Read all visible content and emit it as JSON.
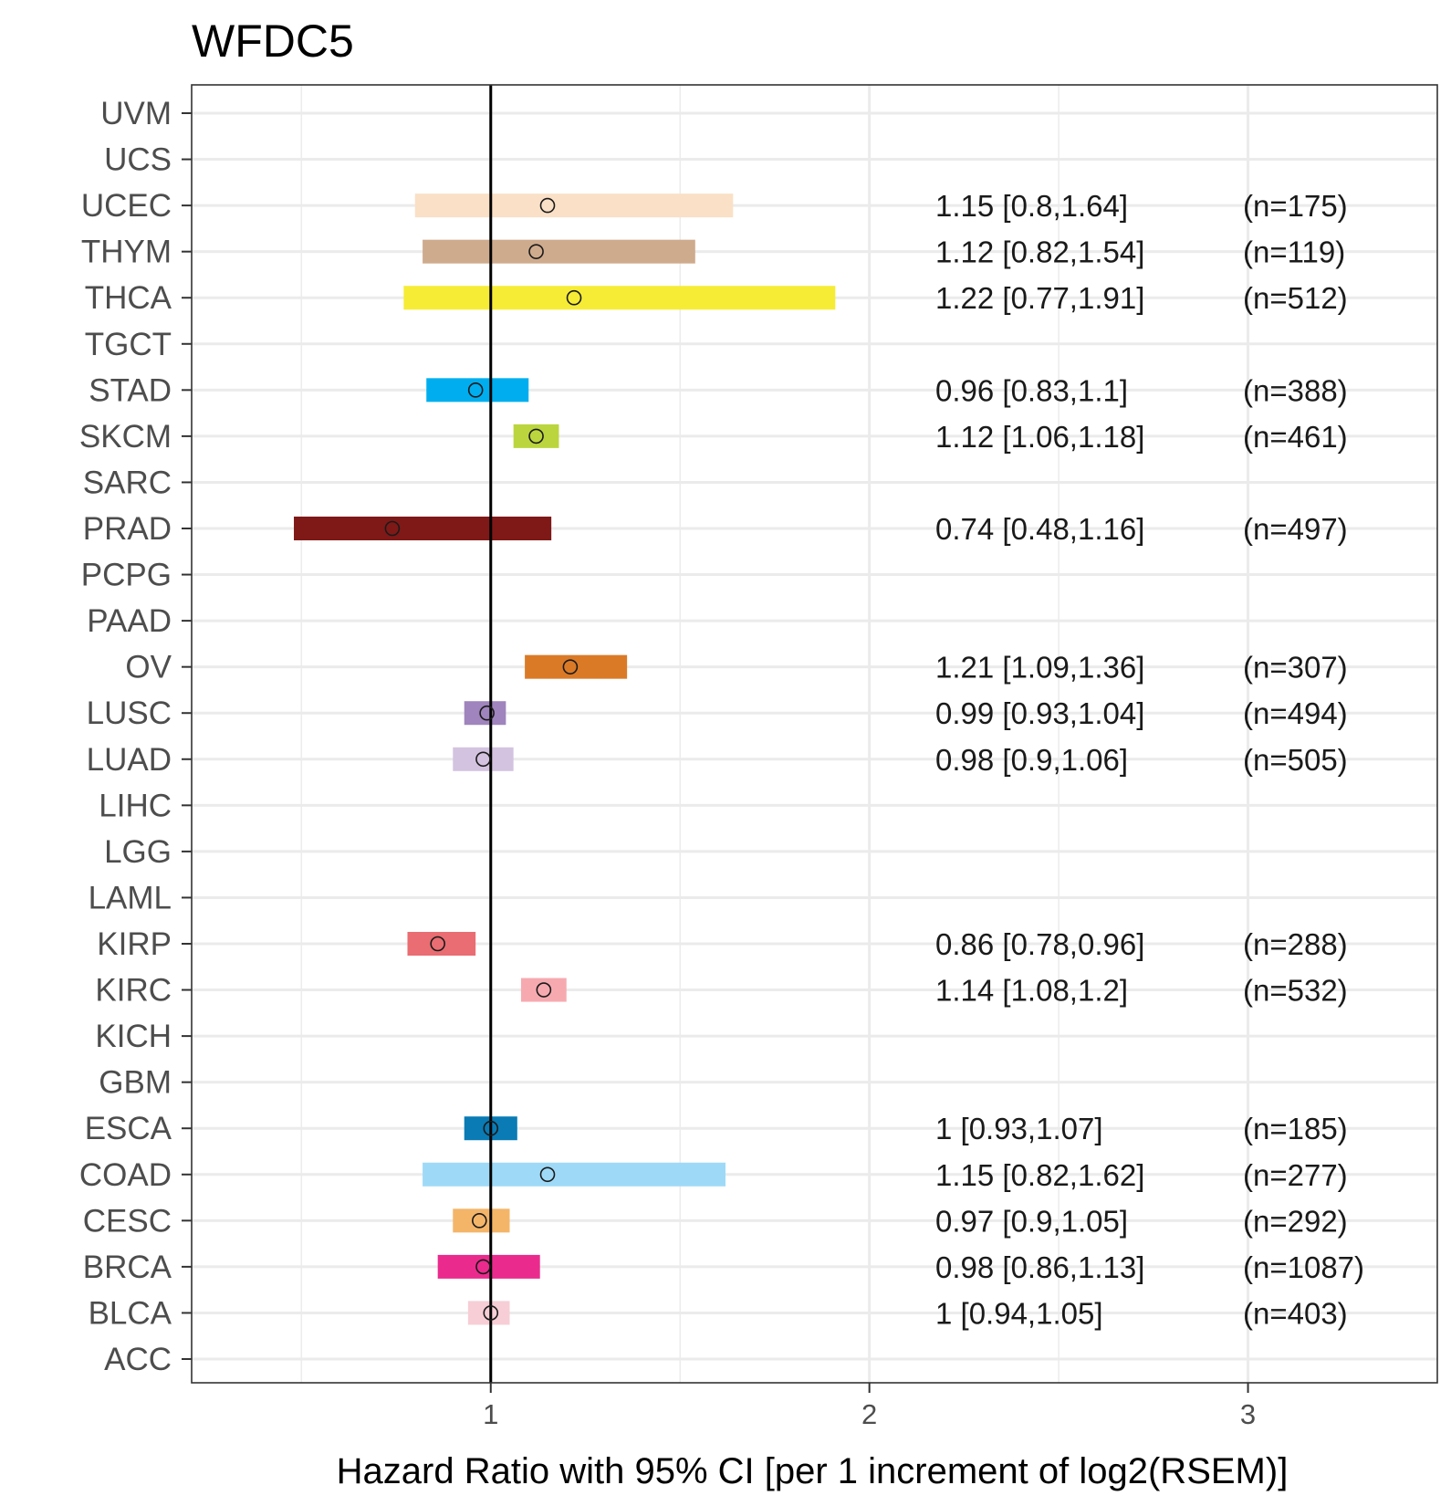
{
  "chart_data": {
    "type": "forest",
    "title": "WFDC5",
    "xlabel": "Hazard Ratio with 95% CI [per 1 increment of log2(RSEM)]",
    "ylabel": "",
    "xlim": [
      0.21,
      3.5
    ],
    "x_ticks": [
      1,
      2,
      3
    ],
    "x_minor_ticks": [
      0.5,
      1.5,
      2.5
    ],
    "reference_line": 1,
    "grid": true,
    "categories": [
      "UVM",
      "UCS",
      "UCEC",
      "THYM",
      "THCA",
      "TGCT",
      "STAD",
      "SKCM",
      "SARC",
      "PRAD",
      "PCPG",
      "PAAD",
      "OV",
      "LUSC",
      "LUAD",
      "LIHC",
      "LGG",
      "LAML",
      "KIRP",
      "KIRC",
      "KICH",
      "GBM",
      "ESCA",
      "COAD",
      "CESC",
      "BRCA",
      "BLCA",
      "ACC"
    ],
    "rows": [
      {
        "cancer": "UVM"
      },
      {
        "cancer": "UCS"
      },
      {
        "cancer": "UCEC",
        "hr": 1.15,
        "lo": 0.8,
        "hi": 1.64,
        "label": "1.15 [0.8,1.64]",
        "n": "(n=175)",
        "color": "#FAE0C6"
      },
      {
        "cancer": "THYM",
        "hr": 1.12,
        "lo": 0.82,
        "hi": 1.54,
        "label": "1.12 [0.82,1.54]",
        "n": "(n=119)",
        "color": "#CFAB8D"
      },
      {
        "cancer": "THCA",
        "hr": 1.22,
        "lo": 0.77,
        "hi": 1.91,
        "label": "1.22 [0.77,1.91]",
        "n": "(n=512)",
        "color": "#F6EC36"
      },
      {
        "cancer": "TGCT"
      },
      {
        "cancer": "STAD",
        "hr": 0.96,
        "lo": 0.83,
        "hi": 1.1,
        "label": "0.96 [0.83,1.1]",
        "n": "(n=388)",
        "color": "#00AEEF"
      },
      {
        "cancer": "SKCM",
        "hr": 1.12,
        "lo": 1.06,
        "hi": 1.18,
        "label": "1.12 [1.06,1.18]",
        "n": "(n=461)",
        "color": "#BBD53E"
      },
      {
        "cancer": "SARC"
      },
      {
        "cancer": "PRAD",
        "hr": 0.74,
        "lo": 0.48,
        "hi": 1.16,
        "label": "0.74 [0.48,1.16]",
        "n": "(n=497)",
        "color": "#7E1918"
      },
      {
        "cancer": "PCPG"
      },
      {
        "cancer": "PAAD"
      },
      {
        "cancer": "OV",
        "hr": 1.21,
        "lo": 1.09,
        "hi": 1.36,
        "label": "1.21 [1.09,1.36]",
        "n": "(n=307)",
        "color": "#DA7A27"
      },
      {
        "cancer": "LUSC",
        "hr": 0.99,
        "lo": 0.93,
        "hi": 1.04,
        "label": "0.99 [0.93,1.04]",
        "n": "(n=494)",
        "color": "#A084BD"
      },
      {
        "cancer": "LUAD",
        "hr": 0.98,
        "lo": 0.9,
        "hi": 1.06,
        "label": "0.98 [0.9,1.06]",
        "n": "(n=505)",
        "color": "#D3C3E0"
      },
      {
        "cancer": "LIHC"
      },
      {
        "cancer": "LGG"
      },
      {
        "cancer": "LAML"
      },
      {
        "cancer": "KIRP",
        "hr": 0.86,
        "lo": 0.78,
        "hi": 0.96,
        "label": "0.86 [0.78,0.96]",
        "n": "(n=288)",
        "color": "#E96D72"
      },
      {
        "cancer": "KIRC",
        "hr": 1.14,
        "lo": 1.08,
        "hi": 1.2,
        "label": "1.14 [1.08,1.2]",
        "n": "(n=532)",
        "color": "#F6AAB0"
      },
      {
        "cancer": "KICH"
      },
      {
        "cancer": "GBM"
      },
      {
        "cancer": "ESCA",
        "hr": 1,
        "lo": 0.93,
        "hi": 1.07,
        "label": "1 [0.93,1.07]",
        "n": "(n=185)",
        "color": "#0A7BB4"
      },
      {
        "cancer": "COAD",
        "hr": 1.15,
        "lo": 0.82,
        "hi": 1.62,
        "label": "1.15 [0.82,1.62]",
        "n": "(n=277)",
        "color": "#9EDAF7"
      },
      {
        "cancer": "CESC",
        "hr": 0.97,
        "lo": 0.9,
        "hi": 1.05,
        "label": "0.97 [0.9,1.05]",
        "n": "(n=292)",
        "color": "#F4B569"
      },
      {
        "cancer": "BRCA",
        "hr": 0.98,
        "lo": 0.86,
        "hi": 1.13,
        "label": "0.98 [0.86,1.13]",
        "n": "(n=1087)",
        "color": "#EA2B8D"
      },
      {
        "cancer": "BLCA",
        "hr": 1,
        "lo": 0.94,
        "hi": 1.05,
        "label": "1 [0.94,1.05]",
        "n": "(n=403)",
        "color": "#F7CED6"
      },
      {
        "cancer": "ACC"
      }
    ]
  }
}
